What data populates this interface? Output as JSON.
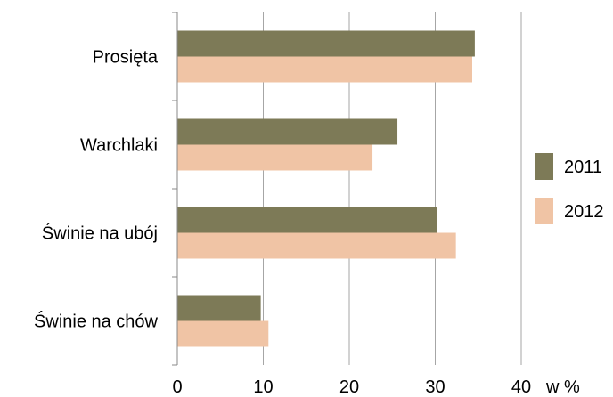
{
  "chart_data": {
    "type": "bar",
    "orientation": "horizontal",
    "categories": [
      "Prosięta",
      "Warchlaki",
      "Świnie na ubój",
      "Świnie na chów"
    ],
    "series": [
      {
        "name": "2011",
        "color": "#7d7a57",
        "values": [
          34.6,
          25.6,
          30.2,
          9.7
        ]
      },
      {
        "name": "2012",
        "color": "#f0c4a5",
        "values": [
          34.3,
          22.7,
          32.4,
          10.6
        ]
      }
    ],
    "xlabel": "w %",
    "xlim": [
      0,
      40
    ],
    "xticks": [
      "0",
      "10",
      "20",
      "30",
      "40"
    ],
    "grid": true,
    "legend": "right"
  }
}
